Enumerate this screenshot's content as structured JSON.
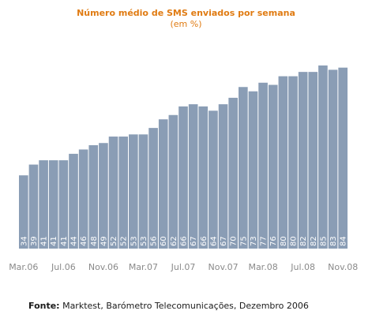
{
  "chart_data": {
    "type": "bar",
    "title": "Número médio de SMS enviados por semana",
    "subtitle": "(em %)",
    "xlabel": "",
    "ylabel": "",
    "ylim": [
      0,
      100
    ],
    "grid": false,
    "bar_color": "#8a9db5",
    "title_color": "#e07b12",
    "categories": [
      "Mar.06",
      "Abr.06",
      "Mai.06",
      "Jun.06",
      "Jul.06",
      "Ago.06",
      "Set.06",
      "Out.06",
      "Nov.06",
      "Dez.06",
      "Jan.07",
      "Fev.07",
      "Mar.07",
      "Abr.07",
      "Mai.07",
      "Jun.07",
      "Jul.07",
      "Ago.07",
      "Set.07",
      "Out.07",
      "Nov.07",
      "Dez.07",
      "Jan.08",
      "Fev.08",
      "Mar.08",
      "Abr.08",
      "Mai.08",
      "Jun.08",
      "Jul.08",
      "Ago.08",
      "Set.08",
      "Out.08",
      "Nov.08"
    ],
    "values": [
      34,
      39,
      41,
      41,
      41,
      44,
      46,
      48,
      49,
      52,
      52,
      53,
      53,
      56,
      60,
      62,
      66,
      67,
      66,
      64,
      67,
      70,
      75,
      73,
      77,
      76,
      80,
      80,
      82,
      82,
      85,
      83,
      84
    ],
    "x_tick_labels": [
      "Mar.06",
      "Jul.06",
      "Nov.06",
      "Mar.07",
      "Jul.07",
      "Nov.07",
      "Mar.08",
      "Jul.08",
      "Nov.08"
    ]
  },
  "source": {
    "label": "Fonte:",
    "text": " Marktest, Barómetro Telecomunicações, Dezembro 2006"
  }
}
